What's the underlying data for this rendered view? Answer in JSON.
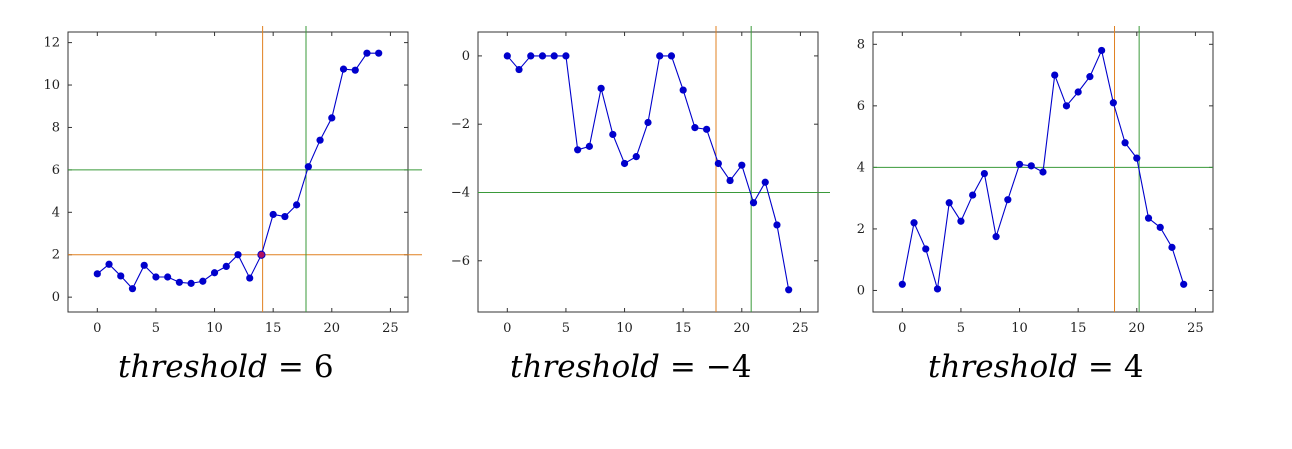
{
  "chart_data": [
    {
      "type": "line",
      "title": "",
      "xlabel": "",
      "ylabel": "",
      "xlim": [
        -2.5,
        26.5
      ],
      "ylim": [
        -0.7,
        12.5
      ],
      "xticks": [
        0,
        5,
        10,
        15,
        20,
        25
      ],
      "yticks": [
        0,
        2,
        4,
        6,
        8,
        10,
        12
      ],
      "grid": false,
      "caption": {
        "var": "threshold",
        "op": "=",
        "value": "6"
      },
      "series": [
        {
          "color": "#0000cc",
          "x": [
            0,
            1,
            2,
            3,
            4,
            5,
            6,
            7,
            8,
            9,
            10,
            11,
            12,
            13,
            14,
            15,
            16,
            17,
            18,
            19,
            20,
            21,
            22,
            23,
            24
          ],
          "y": [
            1.1,
            1.55,
            1.0,
            0.4,
            1.5,
            0.95,
            0.95,
            0.7,
            0.65,
            0.75,
            1.15,
            1.45,
            2.0,
            0.9,
            2.0,
            3.9,
            3.8,
            4.35,
            6.15,
            7.4,
            8.45,
            10.75,
            10.7,
            11.5,
            11.5
          ]
        }
      ],
      "highlight_point": {
        "x": 14,
        "y": 2.0,
        "color": "#b01060"
      },
      "vlines": [
        {
          "x": 14.1,
          "color": "#e08020"
        },
        {
          "x": 17.8,
          "color": "#3a9a3a"
        }
      ],
      "hlines": [
        {
          "y": 2.0,
          "color": "#e08020"
        },
        {
          "y": 6.0,
          "color": "#3a9a3a"
        }
      ]
    },
    {
      "type": "line",
      "title": "",
      "xlabel": "",
      "ylabel": "",
      "xlim": [
        -2.5,
        26.5
      ],
      "ylim": [
        -7.5,
        0.7
      ],
      "xticks": [
        0,
        5,
        10,
        15,
        20,
        25
      ],
      "yticks": [
        0,
        -2,
        -4,
        -6
      ],
      "grid": false,
      "caption": {
        "var": "threshold",
        "op": "=",
        "value": "−4"
      },
      "series": [
        {
          "color": "#0000cc",
          "x": [
            0,
            1,
            2,
            3,
            4,
            5,
            6,
            7,
            8,
            9,
            10,
            11,
            12,
            13,
            14,
            15,
            16,
            17,
            18,
            19,
            20,
            21,
            22,
            23,
            24
          ],
          "y": [
            0.0,
            -0.4,
            0.0,
            0.0,
            0.0,
            0.0,
            -2.75,
            -2.65,
            -0.95,
            -2.3,
            -3.15,
            -2.95,
            -1.95,
            0.0,
            0.0,
            -1.0,
            -2.1,
            -2.15,
            -3.15,
            -3.65,
            -3.2,
            -4.3,
            -3.7,
            -4.95,
            -6.85
          ]
        }
      ],
      "vlines": [
        {
          "x": 17.8,
          "color": "#e08020"
        },
        {
          "x": 20.8,
          "color": "#3a9a3a"
        }
      ],
      "hlines": [
        {
          "y": -4.0,
          "color": "#3a9a3a"
        }
      ]
    },
    {
      "type": "line",
      "title": "",
      "xlabel": "",
      "ylabel": "",
      "xlim": [
        -2.5,
        26.5
      ],
      "ylim": [
        -0.7,
        8.4
      ],
      "xticks": [
        0,
        5,
        10,
        15,
        20,
        25
      ],
      "yticks": [
        0,
        2,
        4,
        6,
        8
      ],
      "grid": false,
      "caption": {
        "var": "threshold",
        "op": "=",
        "value": "4"
      },
      "series": [
        {
          "color": "#0000cc",
          "x": [
            0,
            1,
            2,
            3,
            4,
            5,
            6,
            7,
            8,
            9,
            10,
            11,
            12,
            13,
            14,
            15,
            16,
            17,
            18,
            19,
            20,
            21,
            22,
            23,
            24
          ],
          "y": [
            0.2,
            2.2,
            1.35,
            0.05,
            2.85,
            2.25,
            3.1,
            3.8,
            1.75,
            2.95,
            4.1,
            4.05,
            3.85,
            7.0,
            6.0,
            6.45,
            6.95,
            7.8,
            6.1,
            4.8,
            4.3,
            2.35,
            2.05,
            1.4,
            0.2
          ]
        }
      ],
      "vlines": [
        {
          "x": 18.1,
          "color": "#e08020"
        },
        {
          "x": 20.2,
          "color": "#3a9a3a"
        }
      ],
      "hlines": [
        {
          "y": 4.0,
          "color": "#3a9a3a"
        }
      ]
    }
  ]
}
